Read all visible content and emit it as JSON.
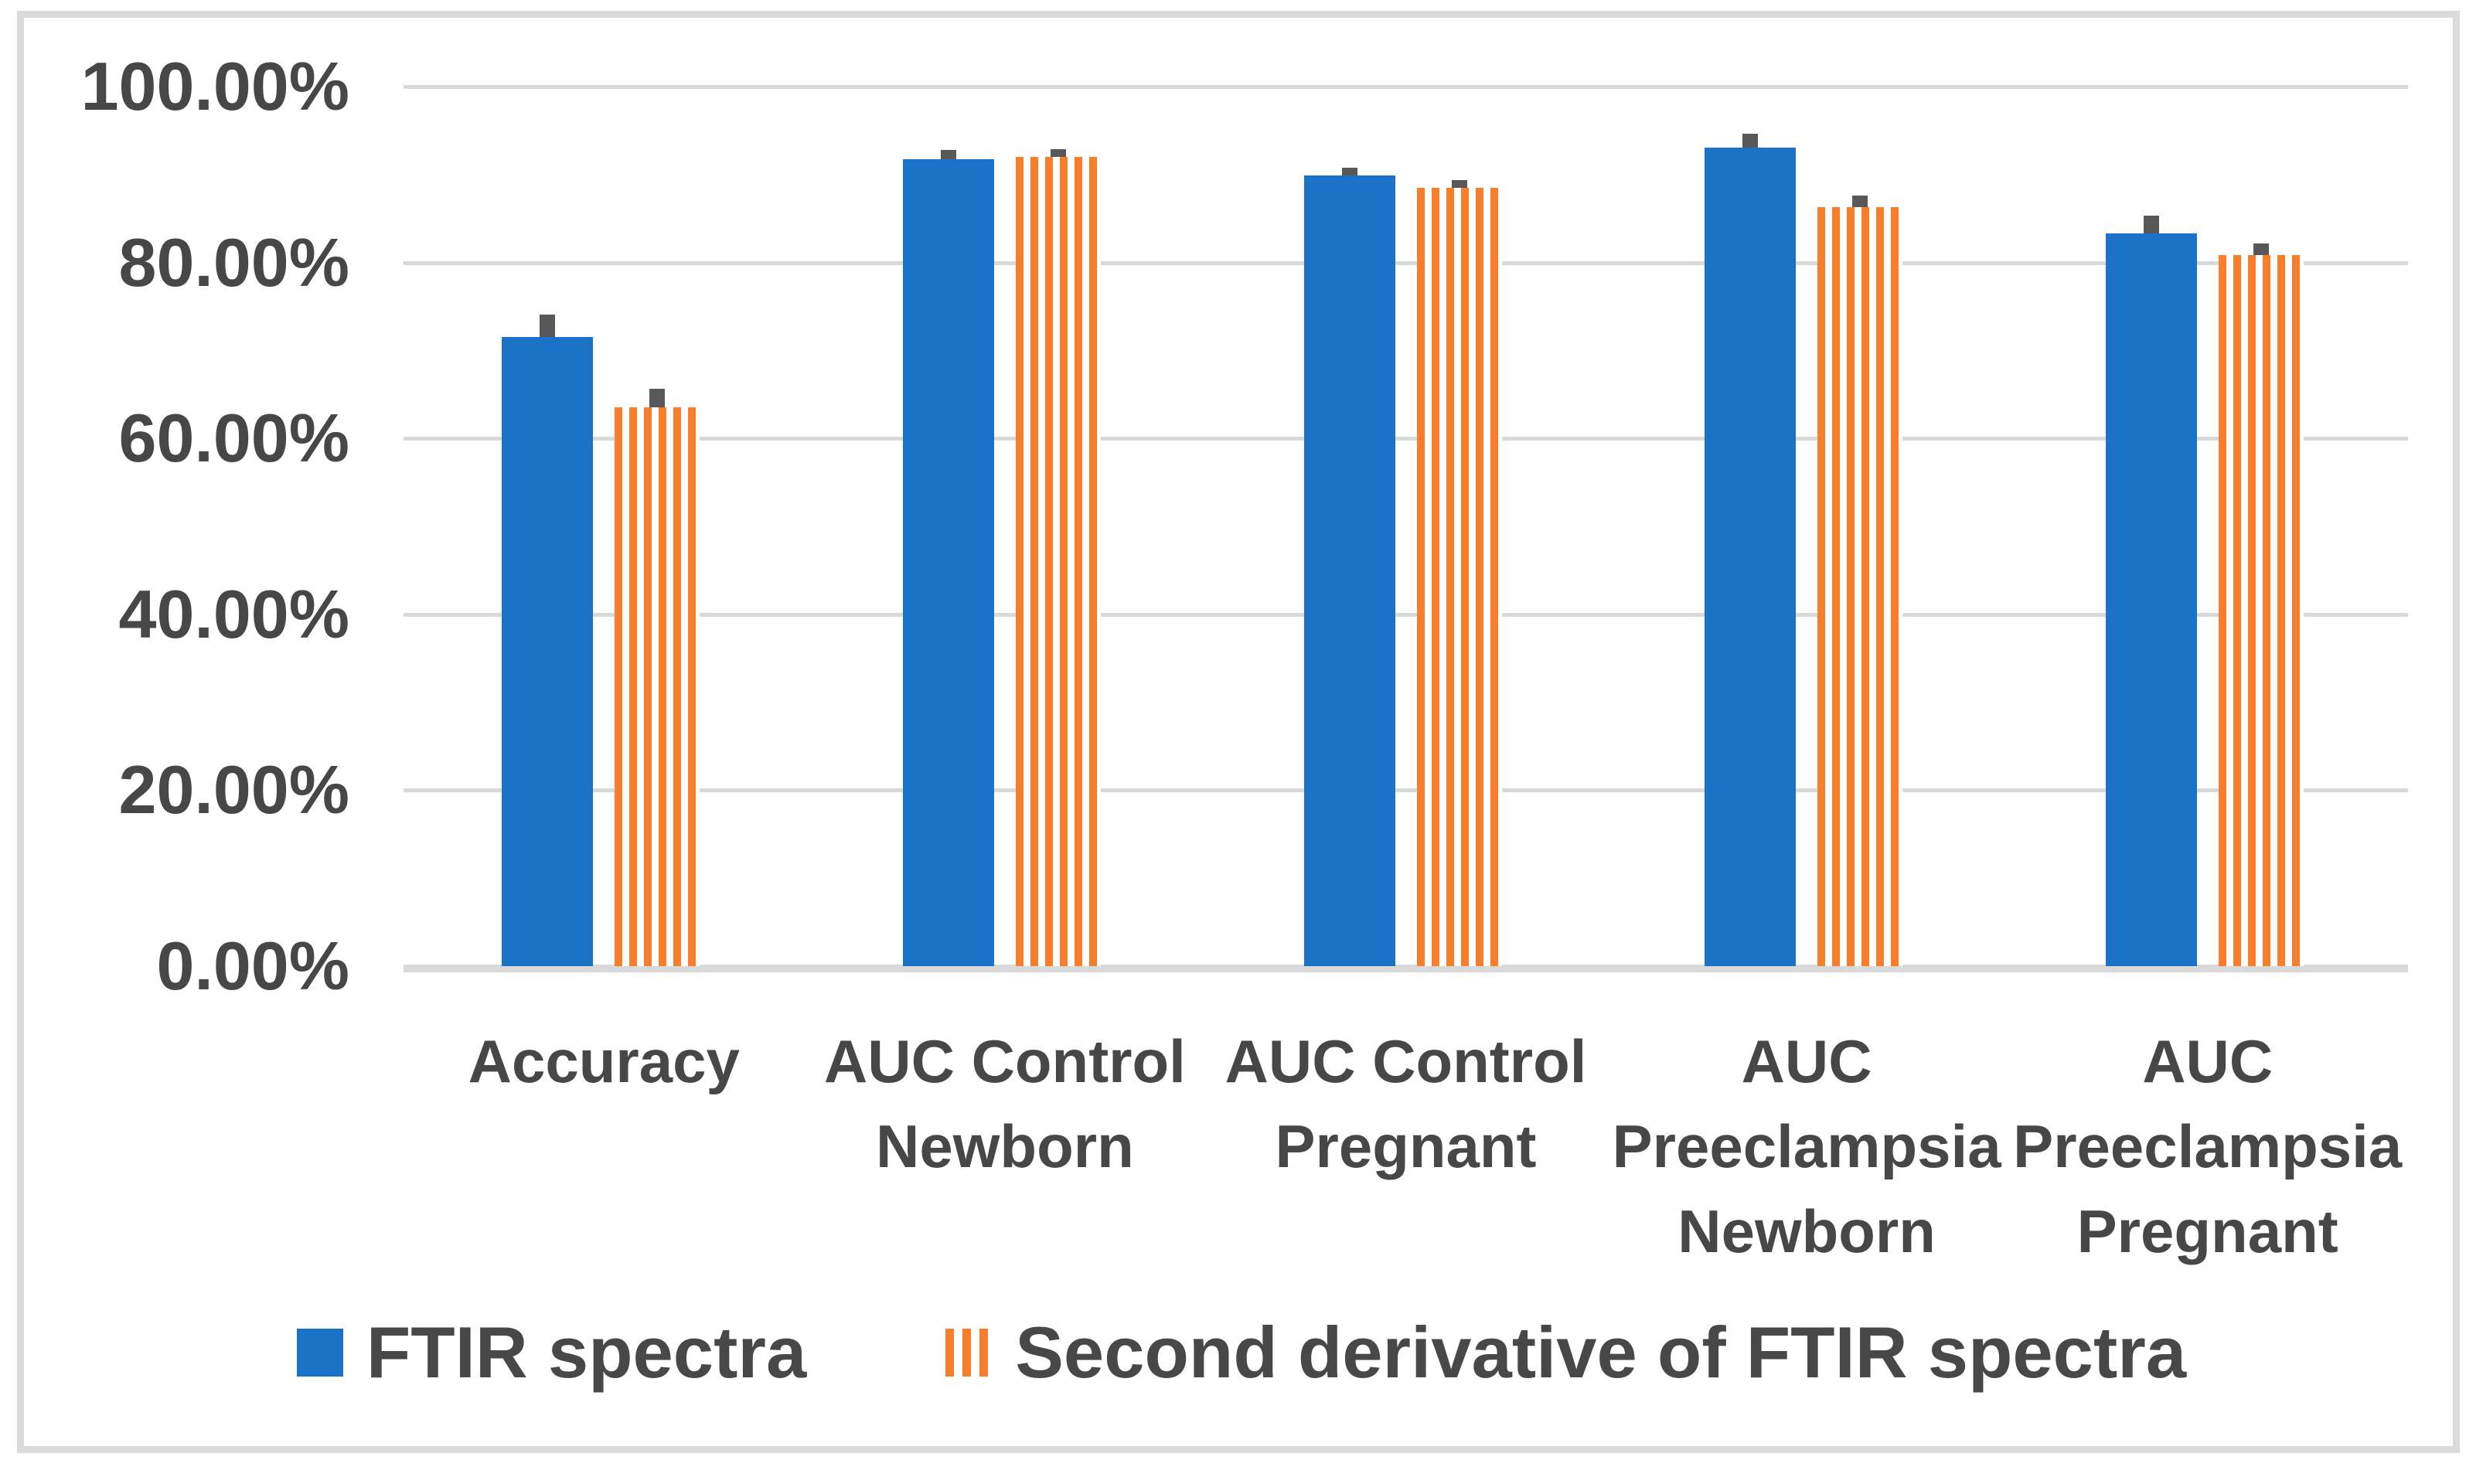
{
  "chart_data": {
    "type": "bar",
    "title": "",
    "categories": [
      "Accuracy",
      "AUC Control\nNewborn",
      "AUC Control\nPregnant",
      "AUC\nPreeclampsia\nNewborn",
      "AUC\nPreeclampsia\nPregnant"
    ],
    "series": [
      {
        "name": "FTIR spectra",
        "values": [
          71.5,
          91.7,
          89.9,
          93.1,
          83.3
        ],
        "errors_plus": [
          2.6,
          1.1,
          0.9,
          1.5,
          2.0
        ],
        "color": "#1B73C8",
        "fill": "solid"
      },
      {
        "name": "Second derivative of FTIR spectra",
        "values": [
          63.5,
          92.0,
          88.5,
          86.3,
          80.8
        ],
        "errors_plus": [
          2.1,
          0.9,
          0.9,
          1.3,
          1.4
        ],
        "color": "#F97E2B",
        "fill": "vertical-stripes"
      }
    ],
    "y_axis": {
      "tick_labels_top_to_bottom": [
        "100.00%",
        "80.00%",
        "60.00%",
        "40.00%",
        "20.00%",
        "0.00%"
      ],
      "min": 0,
      "max": 100,
      "step": 20,
      "unit": "percent"
    },
    "grid": true,
    "legend_position": "bottom",
    "colors": {
      "error_bar": "#58585A",
      "gridline": "#D9D9D9",
      "frame_border": "#DBDBDB",
      "text": "#474747",
      "background": "#FFFFFF"
    }
  }
}
